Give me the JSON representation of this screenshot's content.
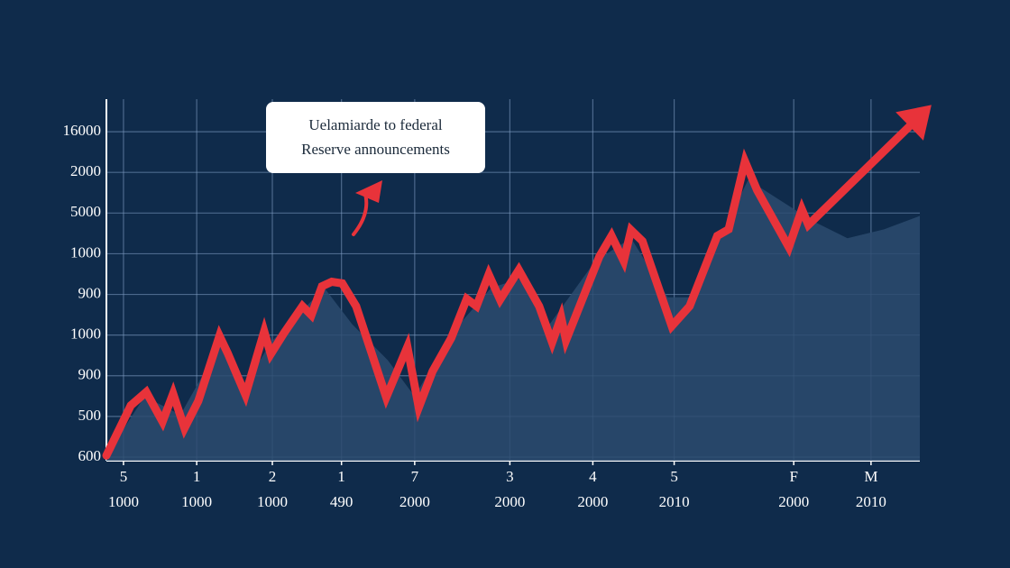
{
  "chart_data": {
    "type": "line",
    "annotation": "Uelamiarde to federal\nReserve announcements",
    "xlim": [
      0,
      100
    ],
    "ylim": [
      0,
      8.8
    ],
    "xticks": [
      {
        "value": 2.1,
        "label": "5\n1000"
      },
      {
        "value": 11.1,
        "label": "1\n1000"
      },
      {
        "value": 20.4,
        "label": "2\n1000"
      },
      {
        "value": 28.9,
        "label": "1\n490"
      },
      {
        "value": 37.9,
        "label": "7\n2000"
      },
      {
        "value": 49.6,
        "label": "3\n2000"
      },
      {
        "value": 59.8,
        "label": "4\n2000"
      },
      {
        "value": 69.8,
        "label": "5\n2010"
      },
      {
        "value": 84.5,
        "label": "F\n2000"
      },
      {
        "value": 94.0,
        "label": "M\n2010"
      }
    ],
    "yticks": [
      {
        "value": 0,
        "label": "600"
      },
      {
        "value": 1,
        "label": "500"
      },
      {
        "value": 2,
        "label": "900"
      },
      {
        "value": 3,
        "label": "1000"
      },
      {
        "value": 4,
        "label": "900"
      },
      {
        "value": 5,
        "label": "1000"
      },
      {
        "value": 6,
        "label": "5000"
      },
      {
        "value": 7,
        "label": "2000"
      },
      {
        "value": 8,
        "label": "16000"
      }
    ],
    "grid": true,
    "series": [
      {
        "kind": "area",
        "color": "#2c4b6e",
        "x": [
          0,
          4.7,
          9.1,
          14.1,
          16.9,
          20.2,
          26.8,
          30.2,
          34.6,
          37.9,
          42.4,
          47.3,
          50.7,
          54.5,
          60.1,
          64.5,
          69.0,
          72.3,
          75.6,
          78.9,
          82.3,
          86.7,
          91.1,
          95.6,
          100
        ],
        "values": [
          0.04,
          1.49,
          1.04,
          2.82,
          1.71,
          2.82,
          4.16,
          3.27,
          2.38,
          1.49,
          3.04,
          4.16,
          4.38,
          3.27,
          4.82,
          5.38,
          3.93,
          3.93,
          5.49,
          6.82,
          6.38,
          5.82,
          5.38,
          5.6,
          5.93
        ]
      },
      {
        "kind": "line",
        "color": "#e8333a",
        "x": [
          0,
          3.0,
          4.9,
          6.9,
          8.2,
          9.6,
          11.3,
          13.9,
          14.9,
          17.1,
          19.4,
          20.2,
          21.8,
          24.1,
          25.2,
          26.5,
          27.7,
          29.0,
          30.7,
          34.4,
          37.0,
          38.4,
          40.1,
          42.4,
          44.3,
          45.5,
          47.0,
          48.4,
          50.7,
          53.2,
          54.8,
          55.9,
          56.5,
          60.6,
          62.1,
          63.6,
          64.5,
          65.9,
          69.5,
          71.7,
          75.1,
          76.5,
          78.5,
          80.0,
          83.9,
          85.5,
          86.3,
          100
        ],
        "values": [
          0.04,
          1.27,
          1.6,
          0.87,
          1.56,
          0.71,
          1.38,
          2.98,
          2.56,
          1.53,
          3.09,
          2.53,
          3.04,
          3.71,
          3.49,
          4.2,
          4.31,
          4.27,
          3.71,
          1.47,
          2.71,
          1.22,
          2.11,
          2.93,
          3.89,
          3.71,
          4.49,
          3.87,
          4.6,
          3.71,
          2.82,
          3.44,
          2.87,
          4.93,
          5.44,
          4.82,
          5.58,
          5.31,
          3.22,
          3.71,
          5.44,
          5.6,
          7.27,
          6.56,
          5.16,
          6.09,
          5.71,
          8.38
        ]
      }
    ]
  }
}
